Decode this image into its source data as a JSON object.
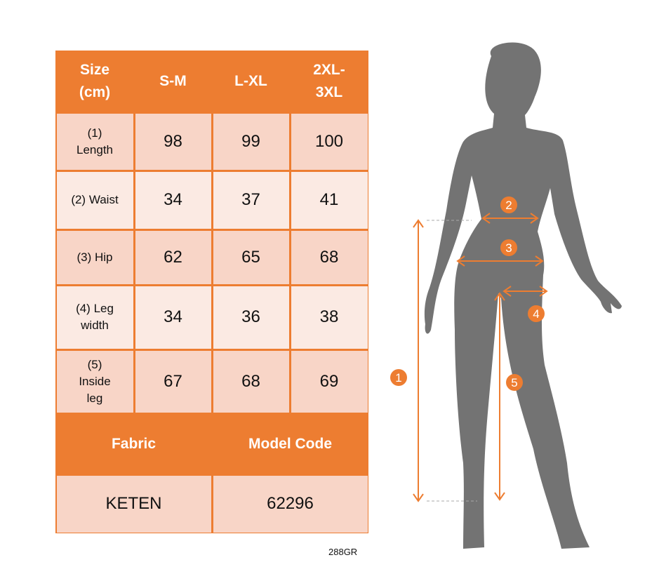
{
  "table": {
    "header": [
      "Size\n(cm)",
      "S-M",
      "L-XL",
      "2XL-\n3XL"
    ],
    "rows": [
      {
        "label": "(1)\nLength",
        "values": [
          "98",
          "99",
          "100"
        ]
      },
      {
        "label": "(2) Waist",
        "values": [
          "34",
          "37",
          "41"
        ]
      },
      {
        "label": "(3) Hip",
        "values": [
          "62",
          "65",
          "68"
        ]
      },
      {
        "label": "(4) Leg\nwidth",
        "values": [
          "34",
          "36",
          "38"
        ]
      },
      {
        "label": "(5)\nInside\nleg",
        "values": [
          "67",
          "68",
          "69"
        ]
      }
    ],
    "footer_header": [
      "Fabric",
      "Model Code"
    ],
    "footer_values": [
      "KETEN",
      "62296"
    ]
  },
  "product_code": "288GR",
  "diagram": {
    "markers": [
      "1",
      "2",
      "3",
      "4",
      "5"
    ],
    "colors": {
      "accent": "#ED7D31",
      "silhouette": "#737373",
      "cell_dark": "#F8D5C7",
      "cell_light": "#FBEAE3"
    }
  }
}
